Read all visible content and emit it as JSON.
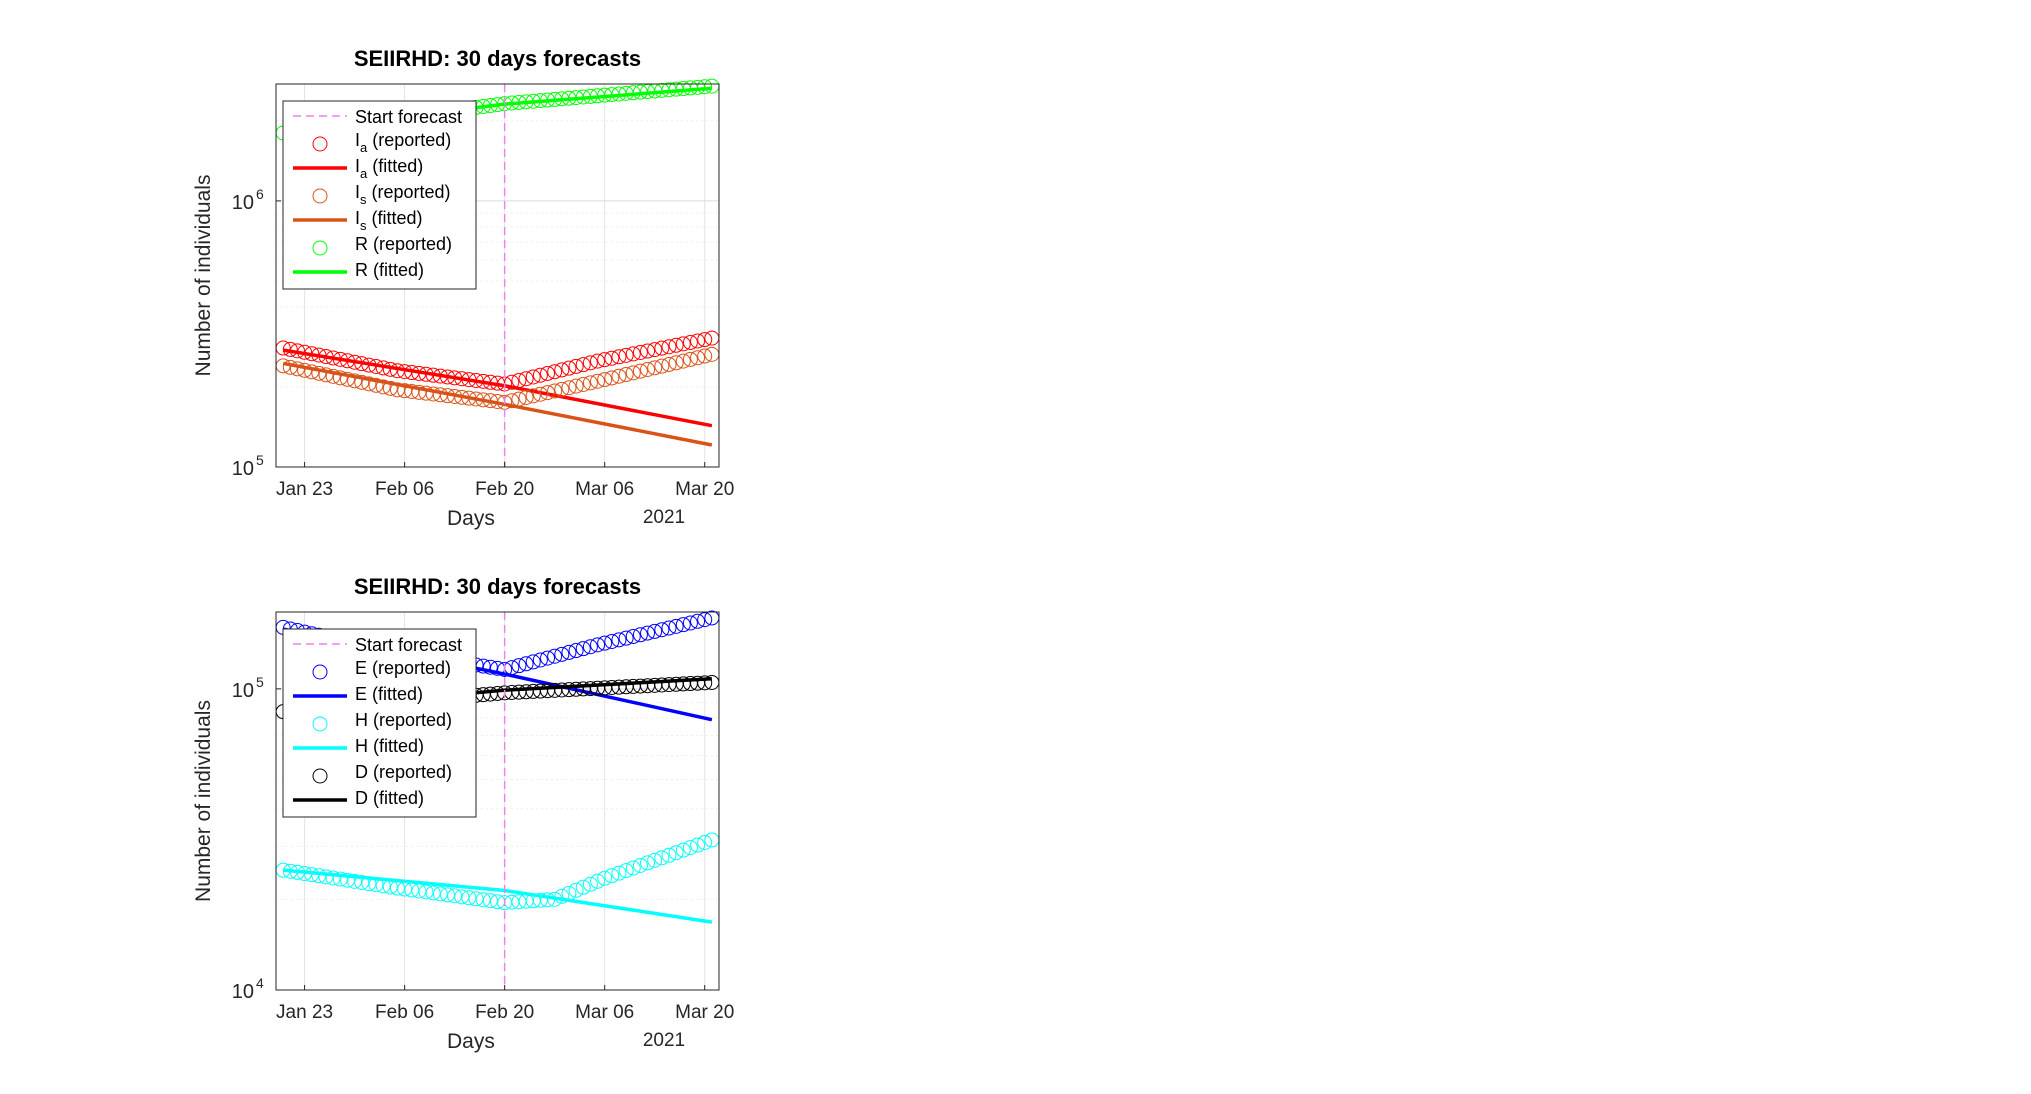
{
  "chart_data": [
    {
      "type": "line",
      "title": "SEIIRHD: 30 days forecasts",
      "xlabel": "Days",
      "ylabel": "Number of individuals",
      "x_year_label": "2021",
      "yscale": "log",
      "ylim": [
        100000,
        2750000
      ],
      "xlim": [
        "2021-01-19",
        "2021-03-22"
      ],
      "x_ticks": [
        {
          "date": "2021-01-23",
          "label": "Jan 23"
        },
        {
          "date": "2021-02-06",
          "label": "Feb 06"
        },
        {
          "date": "2021-02-20",
          "label": "Feb 20"
        },
        {
          "date": "2021-03-06",
          "label": "Mar 06"
        },
        {
          "date": "2021-03-20",
          "label": "Mar 20"
        }
      ],
      "y_ticks": [
        {
          "value": 100000,
          "base": "10",
          "exp": "5"
        },
        {
          "value": 1000000,
          "base": "10",
          "exp": "6"
        }
      ],
      "grid": true,
      "legend_position": "top-left",
      "forecast_start": {
        "label": "Start forecast",
        "date": "2021-02-20",
        "color": "#ee82ee"
      },
      "series": [
        {
          "key": "Ia_rep",
          "legend_main": "I",
          "legend_sub": "a",
          "legend_rest": " (reported)",
          "kind": "markers",
          "color": "#ff0000",
          "points": [
            [
              "2021-01-20",
              280000
            ],
            [
              "2021-02-05",
              230000
            ],
            [
              "2021-02-20",
              205000
            ],
            [
              "2021-03-05",
              250000
            ],
            [
              "2021-03-21",
              305000
            ]
          ]
        },
        {
          "key": "Ia_fit",
          "legend_main": "I",
          "legend_sub": "a",
          "legend_rest": " (fitted)",
          "kind": "line",
          "color": "#ff0000",
          "points": [
            [
              "2021-01-20",
              275000
            ],
            [
              "2021-02-20",
              202000
            ],
            [
              "2021-03-21",
              143000
            ]
          ]
        },
        {
          "key": "Is_rep",
          "legend_main": "I",
          "legend_sub": "s",
          "legend_rest": " (reported)",
          "kind": "markers",
          "color": "#d95319",
          "points": [
            [
              "2021-01-20",
              240000
            ],
            [
              "2021-02-05",
              195000
            ],
            [
              "2021-02-20",
              175000
            ],
            [
              "2021-03-05",
              210000
            ],
            [
              "2021-03-21",
              265000
            ]
          ]
        },
        {
          "key": "Is_fit",
          "legend_main": "I",
          "legend_sub": "s",
          "legend_rest": " (fitted)",
          "kind": "line",
          "color": "#d95319",
          "points": [
            [
              "2021-01-20",
              245000
            ],
            [
              "2021-02-20",
              172000
            ],
            [
              "2021-03-21",
              121000
            ]
          ]
        },
        {
          "key": "R_rep",
          "legend_main": "R",
          "legend_sub": "",
          "legend_rest": " (reported)",
          "kind": "markers",
          "color": "#00ff00",
          "points": [
            [
              "2021-01-20",
              1800000
            ],
            [
              "2021-02-20",
              2320000
            ],
            [
              "2021-03-21",
              2700000
            ]
          ]
        },
        {
          "key": "R_fit",
          "legend_main": "R",
          "legend_sub": "",
          "legend_rest": " (fitted)",
          "kind": "line",
          "color": "#00ff00",
          "points": [
            [
              "2021-01-20",
              1830000
            ],
            [
              "2021-02-20",
              2310000
            ],
            [
              "2021-03-21",
              2650000
            ]
          ]
        }
      ]
    },
    {
      "type": "line",
      "title": "SEIIRHD: 30 days forecasts",
      "xlabel": "Days",
      "ylabel": "Number of individuals",
      "x_year_label": "2021",
      "yscale": "log",
      "ylim": [
        10000,
        180000
      ],
      "xlim": [
        "2021-01-19",
        "2021-03-22"
      ],
      "x_ticks": [
        {
          "date": "2021-01-23",
          "label": "Jan 23"
        },
        {
          "date": "2021-02-06",
          "label": "Feb 06"
        },
        {
          "date": "2021-02-20",
          "label": "Feb 20"
        },
        {
          "date": "2021-03-06",
          "label": "Mar 06"
        },
        {
          "date": "2021-03-20",
          "label": "Mar 20"
        }
      ],
      "y_ticks": [
        {
          "value": 10000,
          "base": "10",
          "exp": "4"
        },
        {
          "value": 100000,
          "base": "10",
          "exp": "5"
        }
      ],
      "grid": true,
      "legend_position": "top-left",
      "forecast_start": {
        "label": "Start forecast",
        "date": "2021-02-20",
        "color": "#ee82ee"
      },
      "series": [
        {
          "key": "E_rep",
          "legend_main": "E",
          "legend_sub": "",
          "legend_rest": " (reported)",
          "kind": "markers",
          "color": "#0000ff",
          "points": [
            [
              "2021-01-20",
              160000
            ],
            [
              "2021-02-05",
              132000
            ],
            [
              "2021-02-20",
              116000
            ],
            [
              "2021-03-05",
              140000
            ],
            [
              "2021-03-21",
              172000
            ]
          ]
        },
        {
          "key": "E_fit",
          "legend_main": "E",
          "legend_sub": "",
          "legend_rest": " (fitted)",
          "kind": "line",
          "color": "#0000ff",
          "points": [
            [
              "2021-01-20",
              158000
            ],
            [
              "2021-02-20",
              112000
            ],
            [
              "2021-03-21",
              79000
            ]
          ]
        },
        {
          "key": "H_rep",
          "legend_main": "H",
          "legend_sub": "",
          "legend_rest": " (reported)",
          "kind": "markers",
          "color": "#00ffff",
          "points": [
            [
              "2021-01-20",
              25000
            ],
            [
              "2021-02-05",
              21800
            ],
            [
              "2021-02-20",
              19500
            ],
            [
              "2021-02-27",
              20000
            ],
            [
              "2021-03-06",
              23500
            ],
            [
              "2021-03-21",
              31500
            ]
          ]
        },
        {
          "key": "H_fit",
          "legend_main": "H",
          "legend_sub": "",
          "legend_rest": " (fitted)",
          "kind": "line",
          "color": "#00ffff",
          "points": [
            [
              "2021-01-20",
              25000
            ],
            [
              "2021-02-20",
              21400
            ],
            [
              "2021-03-21",
              16800
            ]
          ]
        },
        {
          "key": "D_rep",
          "legend_main": "D",
          "legend_sub": "",
          "legend_rest": " (reported)",
          "kind": "markers",
          "color": "#000000",
          "points": [
            [
              "2021-01-20",
              84000
            ],
            [
              "2021-02-20",
              97000
            ],
            [
              "2021-03-21",
              105000
            ]
          ]
        },
        {
          "key": "D_fit",
          "legend_main": "D",
          "legend_sub": "",
          "legend_rest": " (fitted)",
          "kind": "line",
          "color": "#000000",
          "points": [
            [
              "2021-01-20",
              85000
            ],
            [
              "2021-02-20",
              99000
            ],
            [
              "2021-03-21",
              108000
            ]
          ]
        }
      ]
    }
  ]
}
